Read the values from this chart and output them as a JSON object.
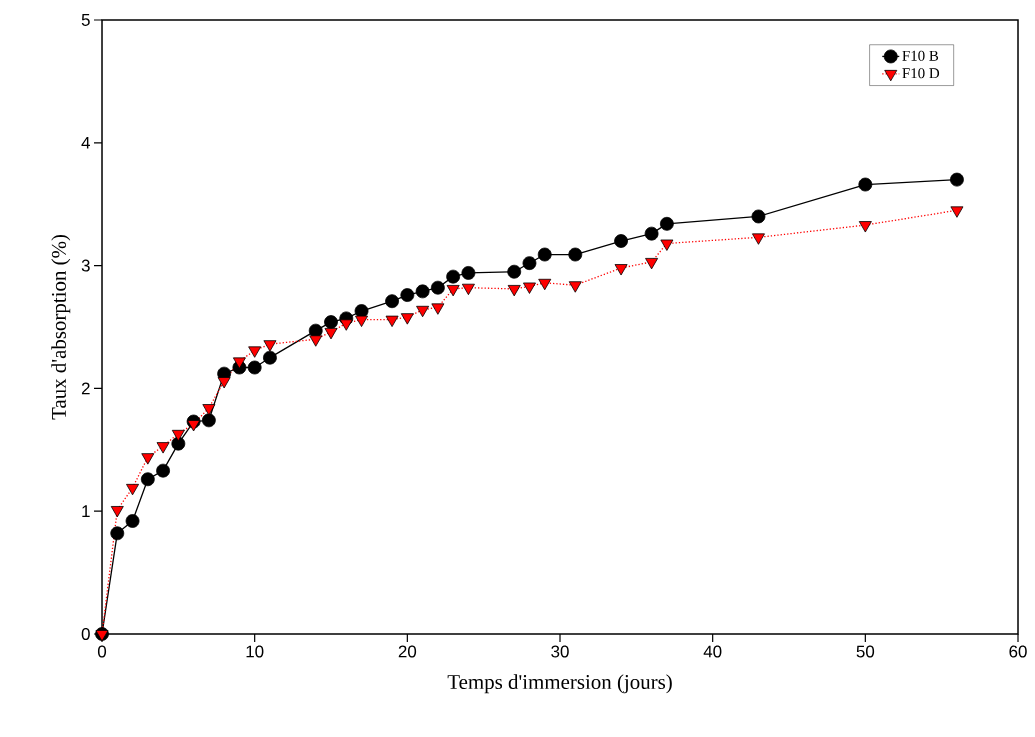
{
  "chart_data": {
    "type": "line",
    "xlabel": "Temps d'immersion (jours)",
    "ylabel": "Taux d'absorption (%)",
    "xlim": [
      0,
      60
    ],
    "ylim": [
      0,
      5
    ],
    "xticks": [
      0,
      10,
      20,
      30,
      40,
      50,
      60
    ],
    "yticks": [
      0,
      1,
      2,
      3,
      4,
      5
    ],
    "grid": false,
    "legend": "top right",
    "series": [
      {
        "name": "F10 B",
        "color": "#000000",
        "marker": "circle",
        "line_style": "solid",
        "x": [
          0,
          1,
          2,
          3,
          4,
          5,
          6,
          7,
          8,
          9,
          10,
          11,
          14,
          15,
          16,
          17,
          19,
          20,
          21,
          22,
          23,
          24,
          27,
          28,
          29,
          31,
          34,
          36,
          37,
          43,
          50,
          56
        ],
        "values": [
          0,
          0.82,
          0.92,
          1.26,
          1.33,
          1.55,
          1.73,
          1.74,
          2.12,
          2.17,
          2.17,
          2.25,
          2.47,
          2.54,
          2.57,
          2.63,
          2.71,
          2.76,
          2.79,
          2.82,
          2.91,
          2.94,
          2.95,
          3.02,
          3.09,
          3.09,
          3.2,
          3.26,
          3.34,
          3.4,
          3.66,
          3.7
        ]
      },
      {
        "name": "F10 D",
        "color": "#ff0000",
        "marker": "triangle",
        "line_style": "dotted",
        "x": [
          0,
          1,
          2,
          3,
          4,
          5,
          6,
          7,
          8,
          9,
          10,
          11,
          14,
          15,
          16,
          17,
          19,
          20,
          21,
          22,
          23,
          24,
          27,
          28,
          29,
          31,
          34,
          36,
          37,
          43,
          50,
          56
        ],
        "values": [
          0,
          1.01,
          1.19,
          1.44,
          1.53,
          1.63,
          1.71,
          1.84,
          2.06,
          2.22,
          2.31,
          2.36,
          2.4,
          2.46,
          2.53,
          2.56,
          2.56,
          2.58,
          2.64,
          2.66,
          2.81,
          2.82,
          2.81,
          2.83,
          2.86,
          2.84,
          2.98,
          3.03,
          3.18,
          3.23,
          3.33,
          3.45
        ]
      }
    ]
  }
}
